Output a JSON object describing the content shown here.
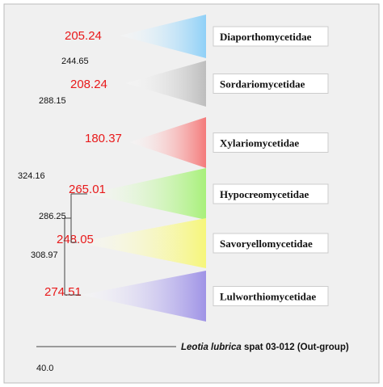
{
  "clades": [
    {
      "label": "Diaporthomycetidae",
      "age": "205.24"
    },
    {
      "label": "Sordariomycetidae",
      "age": "208.24"
    },
    {
      "label": "Xylariomycetidae",
      "age": "180.37"
    },
    {
      "label": "Hypocreomycetidae",
      "age": "265.01"
    },
    {
      "label": "Savoryellomycetidae",
      "age": "248.05"
    },
    {
      "label": "Lulworthiomycetidae",
      "age": "274.51"
    }
  ],
  "nodes": [
    "244.65",
    "288.15",
    "324.16",
    "286.25",
    "308.97"
  ],
  "outgroup": {
    "species": "Leotia lubrica",
    "rest": "spat 03-012 (Out-group)"
  },
  "scale": "40.0"
}
